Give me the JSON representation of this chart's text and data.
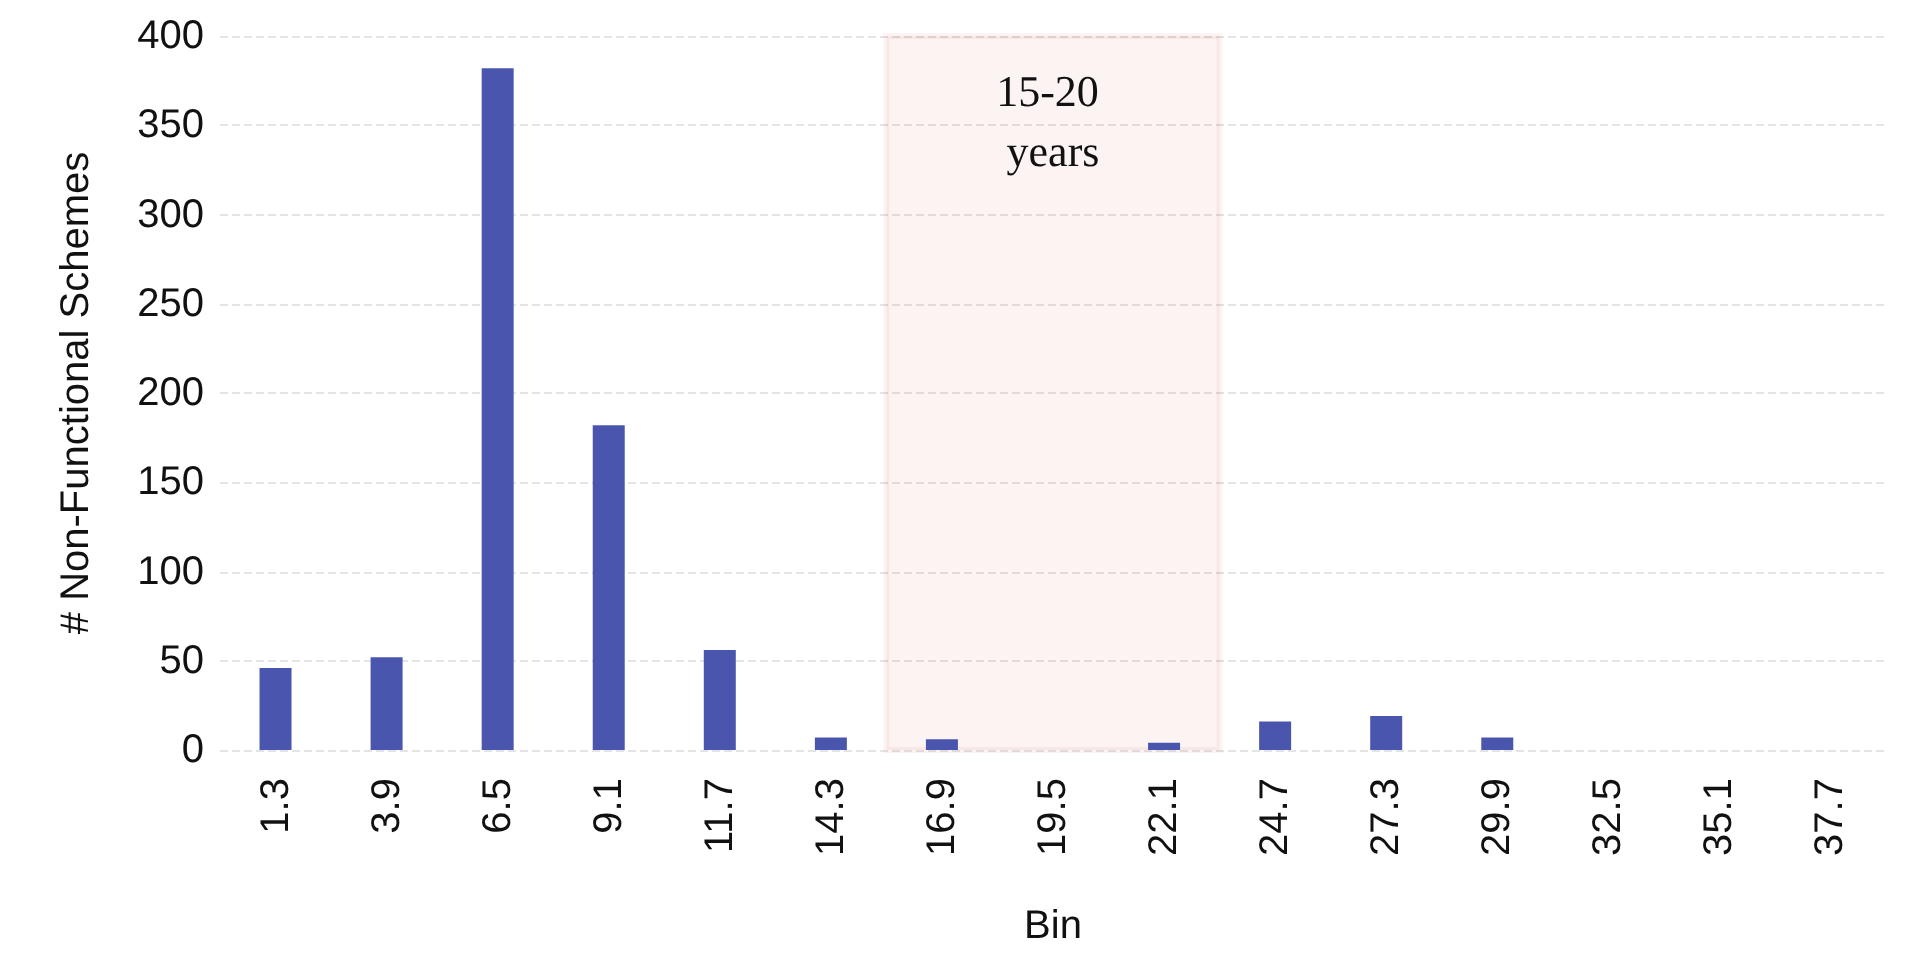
{
  "chart_data": {
    "type": "bar",
    "xlabel": "Bin",
    "ylabel": "# Non-Functional Schemes",
    "categories": [
      "1.3",
      "3.9",
      "6.5",
      "9.1",
      "11.7",
      "14.3",
      "16.9",
      "19.5",
      "22.1",
      "24.7",
      "27.3",
      "29.9",
      "32.5",
      "35.1",
      "37.7"
    ],
    "values": [
      46,
      52,
      382,
      182,
      56,
      7,
      6,
      0,
      4,
      16,
      19,
      7,
      0,
      0,
      0
    ],
    "color": "#4a56ad",
    "ylim": [
      0,
      400
    ],
    "yticks": [
      0,
      50,
      100,
      150,
      200,
      250,
      300,
      350,
      400
    ],
    "grid": "y",
    "bands": [
      {
        "axis": "x",
        "from": "16.9",
        "to": "22.1",
        "label": "15-20 years",
        "color": "#d0392b"
      }
    ]
  }
}
